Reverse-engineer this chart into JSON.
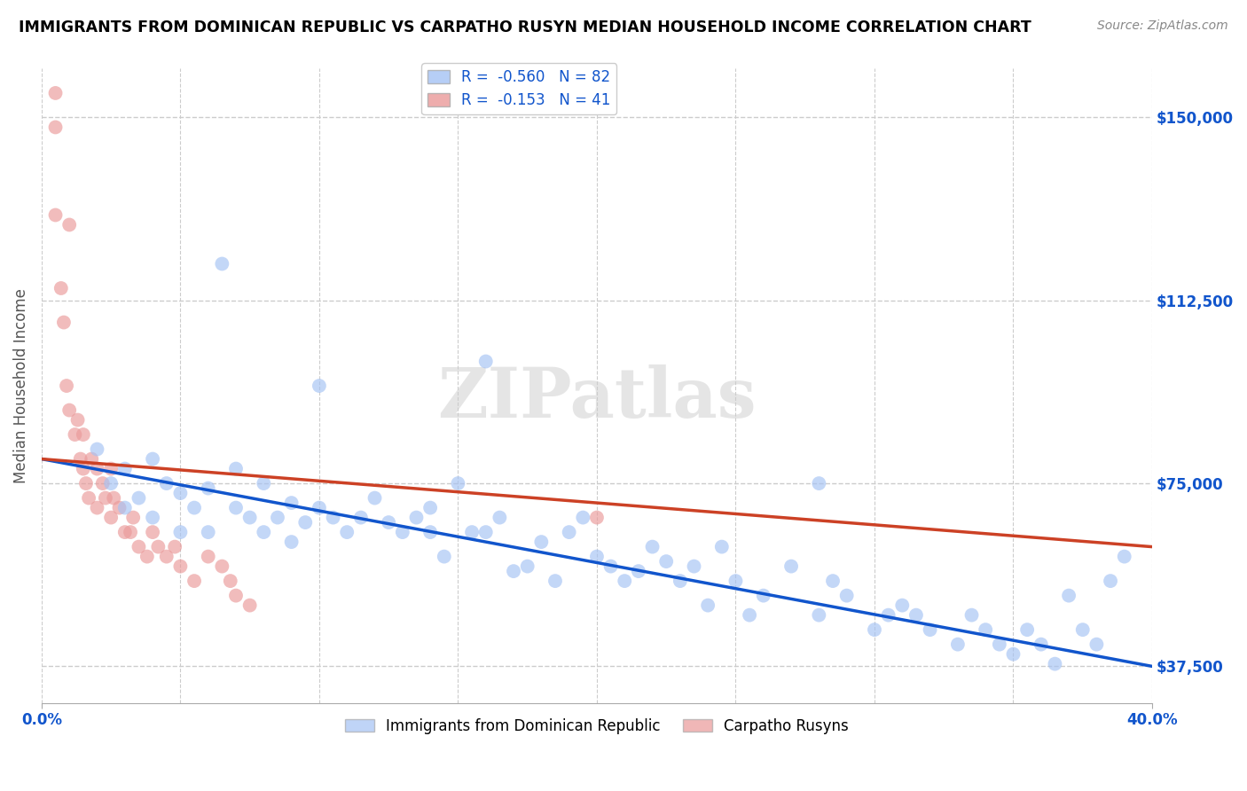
{
  "title": "IMMIGRANTS FROM DOMINICAN REPUBLIC VS CARPATHO RUSYN MEDIAN HOUSEHOLD INCOME CORRELATION CHART",
  "source": "Source: ZipAtlas.com",
  "ylabel": "Median Household Income",
  "xlim": [
    0.0,
    0.4
  ],
  "ylim": [
    30000,
    160000
  ],
  "yticks": [
    37500,
    75000,
    112500,
    150000
  ],
  "ytick_labels": [
    "$37,500",
    "$75,000",
    "$112,500",
    "$150,000"
  ],
  "blue_color": "#a4c2f4",
  "pink_color": "#ea9999",
  "blue_line_color": "#1155cc",
  "pink_line_color": "#cc4125",
  "legend_blue_label": "Immigrants from Dominican Republic",
  "legend_pink_label": "Carpatho Rusyns",
  "R_blue": -0.56,
  "N_blue": 82,
  "R_pink": -0.153,
  "N_pink": 41,
  "watermark": "ZIPatlas",
  "blue_line_x0": 0.0,
  "blue_line_y0": 80000,
  "blue_line_x1": 0.4,
  "blue_line_y1": 37500,
  "pink_line_x0": 0.0,
  "pink_line_y0": 80000,
  "pink_line_x1": 0.4,
  "pink_line_y1": 62000,
  "blue_scatter_x": [
    0.02,
    0.025,
    0.03,
    0.03,
    0.035,
    0.04,
    0.04,
    0.045,
    0.05,
    0.05,
    0.055,
    0.06,
    0.06,
    0.065,
    0.07,
    0.07,
    0.075,
    0.08,
    0.08,
    0.085,
    0.09,
    0.09,
    0.095,
    0.1,
    0.1,
    0.105,
    0.11,
    0.115,
    0.12,
    0.125,
    0.13,
    0.135,
    0.14,
    0.14,
    0.145,
    0.15,
    0.155,
    0.16,
    0.165,
    0.17,
    0.175,
    0.18,
    0.185,
    0.19,
    0.195,
    0.2,
    0.205,
    0.21,
    0.215,
    0.22,
    0.225,
    0.23,
    0.235,
    0.24,
    0.245,
    0.25,
    0.255,
    0.26,
    0.27,
    0.28,
    0.285,
    0.29,
    0.3,
    0.305,
    0.31,
    0.315,
    0.32,
    0.33,
    0.335,
    0.34,
    0.345,
    0.35,
    0.355,
    0.36,
    0.365,
    0.37,
    0.375,
    0.38,
    0.385,
    0.39,
    0.16,
    0.28
  ],
  "blue_scatter_y": [
    82000,
    75000,
    78000,
    70000,
    72000,
    80000,
    68000,
    75000,
    73000,
    65000,
    70000,
    74000,
    65000,
    120000,
    70000,
    78000,
    68000,
    65000,
    75000,
    68000,
    71000,
    63000,
    67000,
    95000,
    70000,
    68000,
    65000,
    68000,
    72000,
    67000,
    65000,
    68000,
    70000,
    65000,
    60000,
    75000,
    65000,
    65000,
    68000,
    57000,
    58000,
    63000,
    55000,
    65000,
    68000,
    60000,
    58000,
    55000,
    57000,
    62000,
    59000,
    55000,
    58000,
    50000,
    62000,
    55000,
    48000,
    52000,
    58000,
    48000,
    55000,
    52000,
    45000,
    48000,
    50000,
    48000,
    45000,
    42000,
    48000,
    45000,
    42000,
    40000,
    45000,
    42000,
    38000,
    52000,
    45000,
    42000,
    55000,
    60000,
    100000,
    75000
  ],
  "pink_scatter_x": [
    0.005,
    0.005,
    0.007,
    0.008,
    0.009,
    0.01,
    0.01,
    0.012,
    0.013,
    0.014,
    0.015,
    0.015,
    0.016,
    0.017,
    0.018,
    0.02,
    0.02,
    0.022,
    0.023,
    0.025,
    0.025,
    0.026,
    0.028,
    0.03,
    0.032,
    0.033,
    0.035,
    0.038,
    0.04,
    0.042,
    0.045,
    0.048,
    0.05,
    0.055,
    0.06,
    0.065,
    0.068,
    0.07,
    0.075,
    0.2,
    0.005
  ],
  "pink_scatter_y": [
    148000,
    130000,
    115000,
    108000,
    95000,
    90000,
    128000,
    85000,
    88000,
    80000,
    78000,
    85000,
    75000,
    72000,
    80000,
    78000,
    70000,
    75000,
    72000,
    78000,
    68000,
    72000,
    70000,
    65000,
    65000,
    68000,
    62000,
    60000,
    65000,
    62000,
    60000,
    62000,
    58000,
    55000,
    60000,
    58000,
    55000,
    52000,
    50000,
    68000,
    155000
  ]
}
